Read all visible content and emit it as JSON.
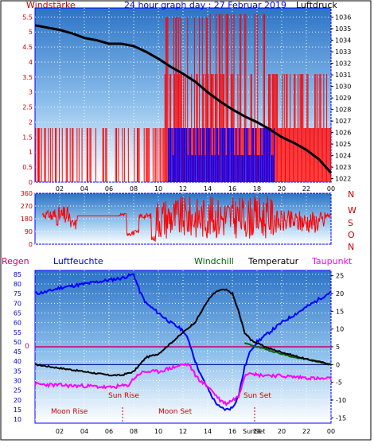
{
  "chart_data": [
    {
      "type": "line",
      "title": "24 hour graph day : 27 Februar 2019",
      "left_axis_label": "Windstärke",
      "right_axis_label": "Luftdruck",
      "x_tick_labels": [
        "02",
        "04",
        "06",
        "08",
        "10",
        "12",
        "14",
        "16",
        "18",
        "20",
        "22",
        "00"
      ],
      "y_left_ticks": [
        "0",
        "0.5",
        "1",
        "1.5",
        "2",
        "2.5",
        "3",
        "3.5",
        "4",
        "4.5",
        "5",
        "5.5"
      ],
      "y_right_ticks": [
        "1022",
        "1023",
        "1024",
        "1025",
        "1026",
        "1027",
        "1028",
        "1029",
        "1030",
        "1031",
        "1032",
        "1033",
        "1034",
        "1035",
        "1036"
      ],
      "ylim_left": [
        0,
        5.8
      ],
      "ylim_right": [
        1021.7,
        1036.8
      ],
      "xlim": [
        0,
        24
      ],
      "colors": {
        "wind_gust": "#ff0000",
        "wind_avg": "#0000ff",
        "pressure": "#000000",
        "frame": "#0000ff",
        "title": "#0000ff",
        "label": "#cc0000"
      },
      "series": [
        {
          "color": "#000000",
          "x": [
            0,
            1,
            2,
            3,
            4,
            5,
            6,
            7,
            8,
            9,
            10,
            11,
            12,
            13,
            14,
            15,
            16,
            17,
            18,
            19,
            20,
            21,
            22,
            23,
            24
          ],
          "values": [
            1035.3,
            1035.1,
            1034.9,
            1034.6,
            1034.2,
            1034.0,
            1033.7,
            1033.7,
            1033.5,
            1033.0,
            1032.4,
            1031.7,
            1031.1,
            1030.4,
            1029.5,
            1028.7,
            1028.0,
            1027.4,
            1026.9,
            1026.3,
            1025.6,
            1025.1,
            1024.5,
            1023.7,
            1022.5
          ]
        }
      ]
    },
    {
      "type": "scatter",
      "right_labels": [
        "N",
        "W",
        "S",
        "O",
        "N"
      ],
      "y_ticks": [
        "360",
        "270",
        "180",
        "90",
        "0"
      ],
      "ylim": [
        0,
        360
      ],
      "xlim": [
        0,
        24
      ],
      "color": "#ff0000"
    },
    {
      "type": "line",
      "labels": {
        "regen": "Regen",
        "luftfeuchte": "Luftfeuchte",
        "windchill": "Windchill",
        "temperatur": "Temperatur",
        "taupunkt": "Taupunkt"
      },
      "label_colors": {
        "regen": "#cc0066",
        "luftfeuchte": "#0000cc",
        "windchill": "#006600",
        "temperatur": "#000000",
        "taupunkt": "#ff00ff"
      },
      "y_left_ticks": [
        "10",
        "15",
        "20",
        "25",
        "30",
        "35",
        "40",
        "45",
        "50",
        "55",
        "60",
        "65",
        "70",
        "75",
        "80",
        "85"
      ],
      "y_right_ticks": [
        "-15",
        "-10",
        "-5",
        "0",
        "5",
        "10",
        "15",
        "20",
        "25"
      ],
      "ylim_left": [
        8,
        87
      ],
      "ylim_right": [
        -16.5,
        26.5
      ],
      "zero_label": "0",
      "x_tick_labels": [
        "02",
        "04",
        "06",
        "08",
        "10",
        "12",
        "14",
        "16",
        "18",
        "20",
        "22",
        "00"
      ],
      "xlim": [
        0,
        24
      ],
      "annotations": [
        "Sun Rise",
        "Sun Set",
        "Moon Rise",
        "Moon Set",
        "SunSet"
      ],
      "series": [
        {
          "name": "Luftfeuchte",
          "color": "#0000ff",
          "axis": "left",
          "x": [
            0,
            1,
            2,
            3,
            4,
            5,
            6,
            7,
            8,
            8.5,
            9,
            10,
            11,
            12,
            12.5,
            13,
            13.5,
            14,
            14.5,
            15,
            15.5,
            16,
            16.5,
            17,
            17.5,
            18,
            19,
            20,
            21,
            22,
            23,
            24
          ],
          "values": [
            75,
            76,
            78,
            79,
            80,
            81,
            82,
            83,
            85,
            76,
            70,
            65,
            60,
            56,
            50,
            40,
            32,
            26,
            20,
            16,
            15,
            16,
            22,
            37,
            46,
            50,
            55,
            60,
            64,
            68,
            72,
            76
          ]
        },
        {
          "name": "Temperatur",
          "color": "#000000",
          "axis": "right",
          "x": [
            0,
            1,
            2,
            3,
            4,
            5,
            6,
            7,
            8,
            9,
            10,
            11,
            12,
            13,
            14,
            14.5,
            15,
            15.5,
            16,
            16.5,
            17,
            17.5,
            18,
            19,
            20,
            21,
            22,
            23,
            24
          ],
          "values": [
            0,
            -0.5,
            -1,
            -1.5,
            -2,
            -2.5,
            -3,
            -3,
            -2,
            2,
            3,
            6,
            9,
            12,
            18,
            20,
            21,
            21,
            20,
            15,
            9,
            7,
            6,
            4.5,
            3.5,
            2.5,
            1.5,
            0.8,
            0
          ]
        },
        {
          "name": "Windchill",
          "color": "#006600",
          "axis": "right",
          "x": [
            17,
            18,
            19,
            20,
            21,
            22,
            23,
            24
          ],
          "values": [
            6,
            5,
            4,
            3,
            2,
            1.5,
            0.8,
            0
          ]
        },
        {
          "name": "Taupunkt",
          "color": "#ff00ff",
          "axis": "right",
          "x": [
            0,
            1,
            2,
            3,
            4,
            5,
            6,
            7,
            7.5,
            8,
            8.5,
            9,
            10,
            11,
            12,
            12.5,
            13,
            13.5,
            14,
            14.5,
            15,
            15.5,
            16,
            16.5,
            17,
            17.5,
            18,
            19,
            20,
            21,
            22,
            23,
            24
          ],
          "values": [
            -5.5,
            -5.7,
            -5.8,
            -6,
            -6,
            -6.2,
            -6.5,
            -6,
            -6,
            -4,
            -2.5,
            -2,
            -2,
            -1,
            0,
            0,
            -3,
            -5,
            -6,
            -8,
            -10,
            -11,
            -10,
            -9,
            -3,
            -2,
            -3,
            -3,
            -3.2,
            -3.5,
            -3.7,
            -4,
            -4
          ]
        }
      ],
      "zero_line_color": "#cc0066",
      "zero_temp_line_color": "#000080"
    }
  ]
}
